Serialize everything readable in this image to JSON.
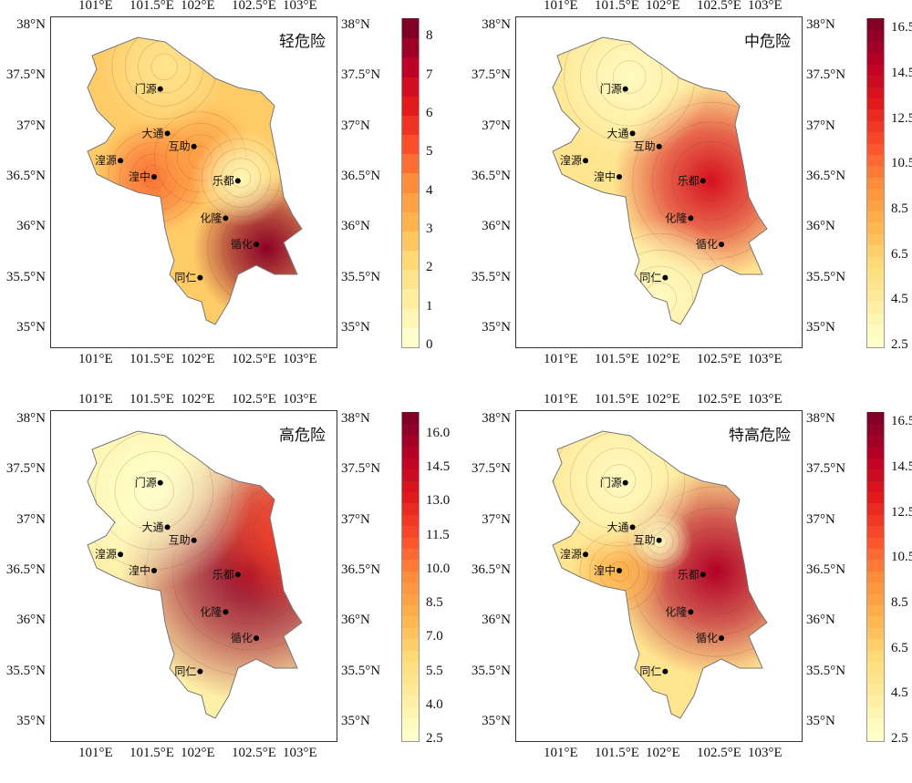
{
  "lon_ticks": [
    "101°E",
    "101.5°E",
    "102°E",
    "102.5°E",
    "103°E"
  ],
  "lat_ticks": [
    "35°N",
    "35.5°N",
    "36°N",
    "36.5°N",
    "37°N",
    "37.5°N",
    "38°N"
  ],
  "cities": [
    {
      "name": "门源",
      "lon": 101.56,
      "lat": 37.38
    },
    {
      "name": "大通",
      "lon": 101.63,
      "lat": 36.94
    },
    {
      "name": "互助",
      "lon": 101.89,
      "lat": 36.81
    },
    {
      "name": "湟源",
      "lon": 101.17,
      "lat": 36.67
    },
    {
      "name": "湟中",
      "lon": 101.5,
      "lat": 36.51
    },
    {
      "name": "乐都",
      "lon": 102.32,
      "lat": 36.47
    },
    {
      "name": "化隆",
      "lon": 102.2,
      "lat": 36.1
    },
    {
      "name": "循化",
      "lon": 102.5,
      "lat": 35.84
    },
    {
      "name": "同仁",
      "lon": 101.95,
      "lat": 35.51
    }
  ],
  "panels": [
    {
      "title": "轻危险",
      "min": 0,
      "max": 8.5,
      "levels": 17,
      "cb_labels": [
        "0",
        "1",
        "2",
        "3",
        "4",
        "5",
        "6",
        "7",
        "8"
      ],
      "cb_values": [
        0,
        1,
        2,
        3,
        4,
        5,
        6,
        7,
        8
      ],
      "base": 2.5,
      "hotspots": [
        {
          "lon": 102.6,
          "lat": 35.8,
          "value": 8.3,
          "r": 0.45
        },
        {
          "lon": 101.5,
          "lat": 36.51,
          "value": 4.8,
          "r": 0.35
        },
        {
          "lon": 101.95,
          "lat": 36.7,
          "value": 3.8,
          "r": 0.35
        },
        {
          "lon": 102.35,
          "lat": 36.5,
          "value": 0.5,
          "r": 0.3
        },
        {
          "lon": 101.6,
          "lat": 37.6,
          "value": 1.5,
          "r": 0.4
        }
      ]
    },
    {
      "title": "中危险",
      "min": 2.5,
      "max": 17,
      "levels": 29,
      "cb_labels": [
        "2.5",
        "4.5",
        "6.5",
        "8.5",
        "10.5",
        "12.5",
        "14.5",
        "16.5"
      ],
      "cb_values": [
        2.5,
        4.5,
        6.5,
        8.5,
        10.5,
        12.5,
        14.5,
        16.5
      ],
      "base": 5,
      "hotspots": [
        {
          "lon": 102.4,
          "lat": 36.47,
          "value": 14,
          "r": 0.6
        },
        {
          "lon": 101.6,
          "lat": 37.5,
          "value": 3,
          "r": 0.5
        },
        {
          "lon": 101.9,
          "lat": 35.3,
          "value": 3,
          "r": 0.5
        }
      ]
    },
    {
      "title": "高危险",
      "min": 2.5,
      "max": 17,
      "levels": 29,
      "cb_labels": [
        "2.5",
        "4.0",
        "5.5",
        "7.0",
        "8.5",
        "10.0",
        "11.5",
        "13.0",
        "14.5",
        "16.0"
      ],
      "cb_values": [
        2.5,
        4,
        5.5,
        7,
        8.5,
        10,
        11.5,
        13,
        14.5,
        16
      ],
      "base": 4,
      "hotspots": [
        {
          "lon": 102.45,
          "lat": 36.5,
          "value": 16.5,
          "r": 0.8
        },
        {
          "lon": 102.8,
          "lat": 36.9,
          "value": 12,
          "r": 0.5
        },
        {
          "lon": 101.5,
          "lat": 37.3,
          "value": 2.5,
          "r": 0.6
        }
      ]
    },
    {
      "title": "特高危险",
      "min": 2.5,
      "max": 17,
      "levels": 29,
      "cb_labels": [
        "2.5",
        "4.5",
        "6.5",
        "8.5",
        "10.5",
        "12.5",
        "14.5",
        "16.5"
      ],
      "cb_values": [
        2.5,
        4.5,
        6.5,
        8.5,
        10.5,
        12.5,
        14.5,
        16.5
      ],
      "base": 5,
      "hotspots": [
        {
          "lon": 102.45,
          "lat": 36.5,
          "value": 15.5,
          "r": 0.65
        },
        {
          "lon": 101.5,
          "lat": 36.5,
          "value": 8,
          "r": 0.3
        },
        {
          "lon": 101.9,
          "lat": 36.8,
          "value": 3,
          "r": 0.2
        },
        {
          "lon": 101.5,
          "lat": 37.4,
          "value": 3,
          "r": 0.5
        }
      ]
    }
  ]
}
